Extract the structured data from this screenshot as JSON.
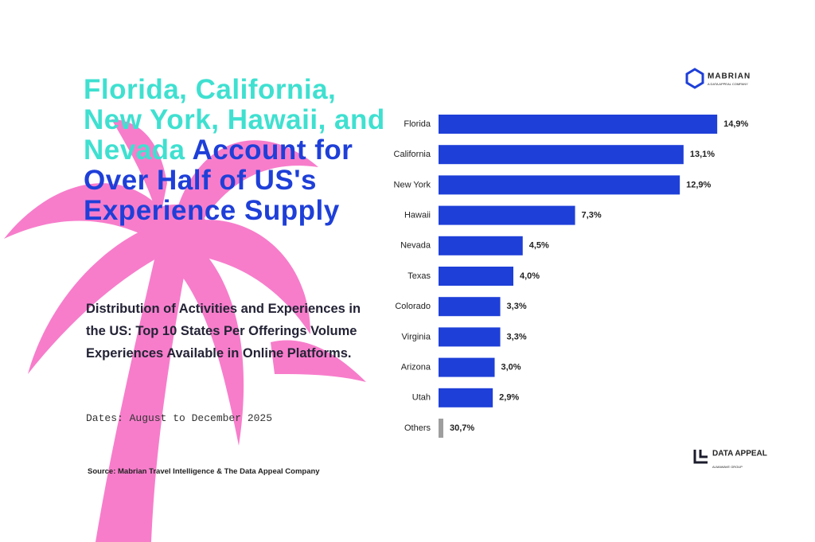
{
  "header": {
    "title_highlight": "Florida, California, New York, Hawaii, and Nevada",
    "title_rest": "Account for Over Half of US's Experience Supply",
    "subtitle": "Distribution of Activities and Experiences in the US: Top 10 States Per Offerings Volume Experiences Available in Online Platforms.",
    "dates": "Dates: August to December 2025"
  },
  "footer": {
    "source": "Source: Mabrian Travel Intelligence & The Data Appeal Company"
  },
  "logos": {
    "mabrian": "MABRIAN",
    "mabrian_tag": "A DATA APPEAL COMPANY",
    "data_appeal": "DATA APPEAL",
    "data_appeal_tag": "ALMAWAVE GROUP"
  },
  "chart_data": {
    "type": "hbar",
    "color": "#1e3fd8",
    "categories": [
      "Florida",
      "California",
      "New York",
      "Hawaii",
      "Nevada",
      "Texas",
      "Colorado",
      "Virginia",
      "Arizona",
      "Utah"
    ],
    "values": [
      14.9,
      13.1,
      12.9,
      7.3,
      4.5,
      4.0,
      3.3,
      3.3,
      3.0,
      2.9
    ],
    "value_labels": [
      "14,9%",
      "13,1%",
      "12,9%",
      "7,3%",
      "4,5%",
      "4,0%",
      "3,3%",
      "3,3%",
      "3,0%",
      "2,9%"
    ],
    "others": {
      "label": "Others",
      "value": 30.7,
      "value_label": "30,7%",
      "color": "#9e9e9e"
    }
  }
}
